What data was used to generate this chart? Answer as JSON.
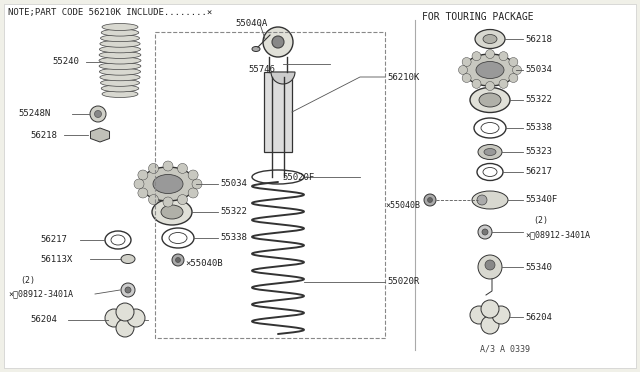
{
  "bg_color": "#f0f0e8",
  "line_color": "#555555",
  "text_color": "#222222",
  "title_note": "NOTE;PART CODE 56210K INCLUDE........×",
  "title_touring": "FOR TOURING PACKAGE",
  "figure_code": "A/3 A 0339",
  "fig_w": 6.4,
  "fig_h": 3.72,
  "dpi": 100
}
